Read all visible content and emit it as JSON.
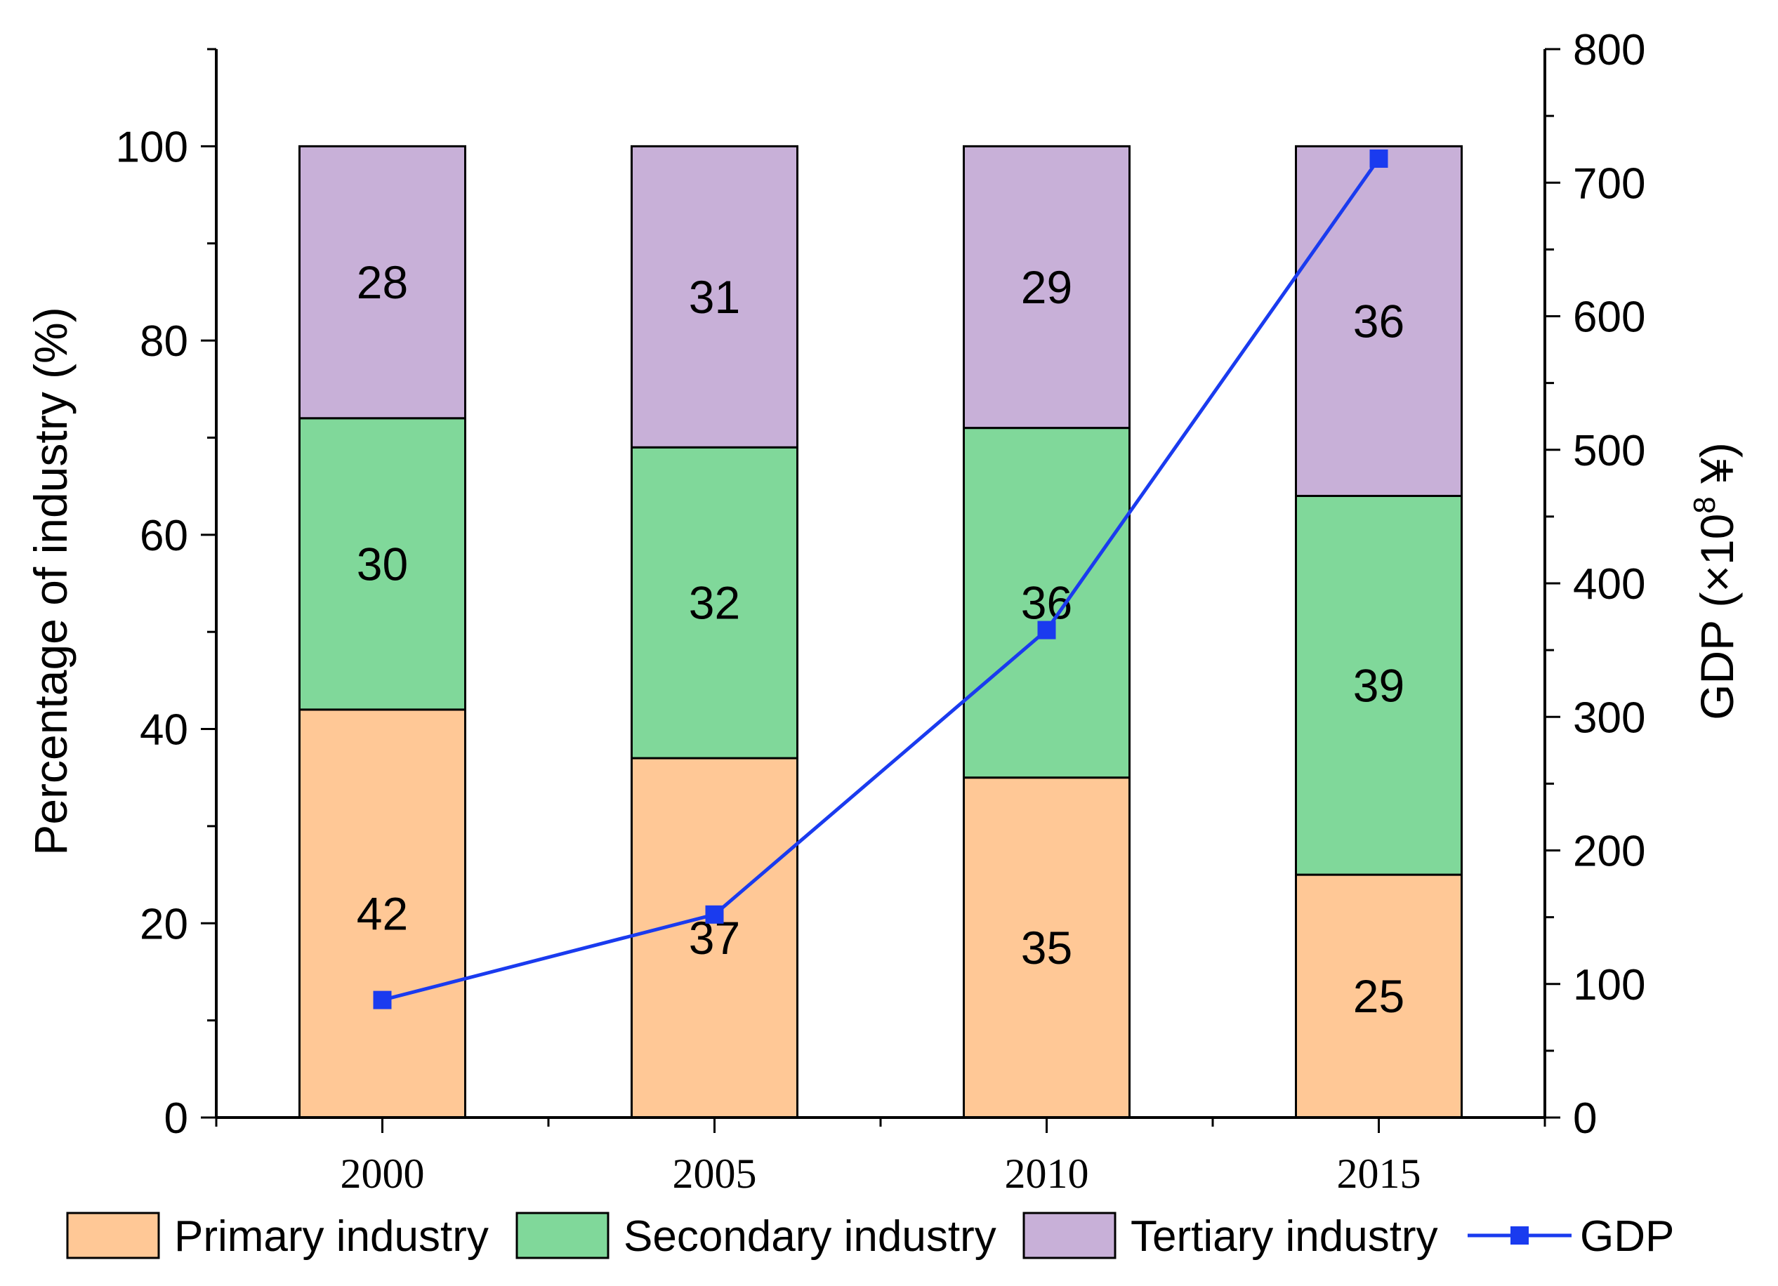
{
  "chart_data": {
    "type": "bar",
    "stacked": true,
    "categories": [
      "2000",
      "2005",
      "2010",
      "2015"
    ],
    "series": [
      {
        "name": "Primary industry",
        "values": [
          42,
          37,
          35,
          25
        ],
        "color": "#FFC896"
      },
      {
        "name": "Secondary industry",
        "values": [
          30,
          32,
          36,
          39
        ],
        "color": "#80D89A"
      },
      {
        "name": "Tertiary industry",
        "values": [
          28,
          31,
          29,
          36
        ],
        "color": "#C8B0D8"
      }
    ],
    "bar_labels": [
      [
        "42",
        "37",
        "35",
        "25"
      ],
      [
        "30",
        "32",
        "36",
        "39"
      ],
      [
        "28",
        "31",
        "29",
        "36"
      ]
    ],
    "line_series": {
      "name": "GDP",
      "axis": "right",
      "values": [
        88,
        152,
        365,
        718
      ],
      "color": "#1A3BEF"
    },
    "ylabel": "Percentage of industry (%)",
    "ylim": [
      0,
      110
    ],
    "yticks": [
      "0",
      "20",
      "40",
      "60",
      "80",
      "100"
    ],
    "y2label_text": "GDP (×10",
    "y2label_sup": "8",
    "y2label_unit": " ¥)",
    "y2lim": [
      0,
      800
    ],
    "y2ticks": [
      "0",
      "100",
      "200",
      "300",
      "400",
      "500",
      "600",
      "700",
      "800"
    ],
    "legend_position": "bottom"
  }
}
